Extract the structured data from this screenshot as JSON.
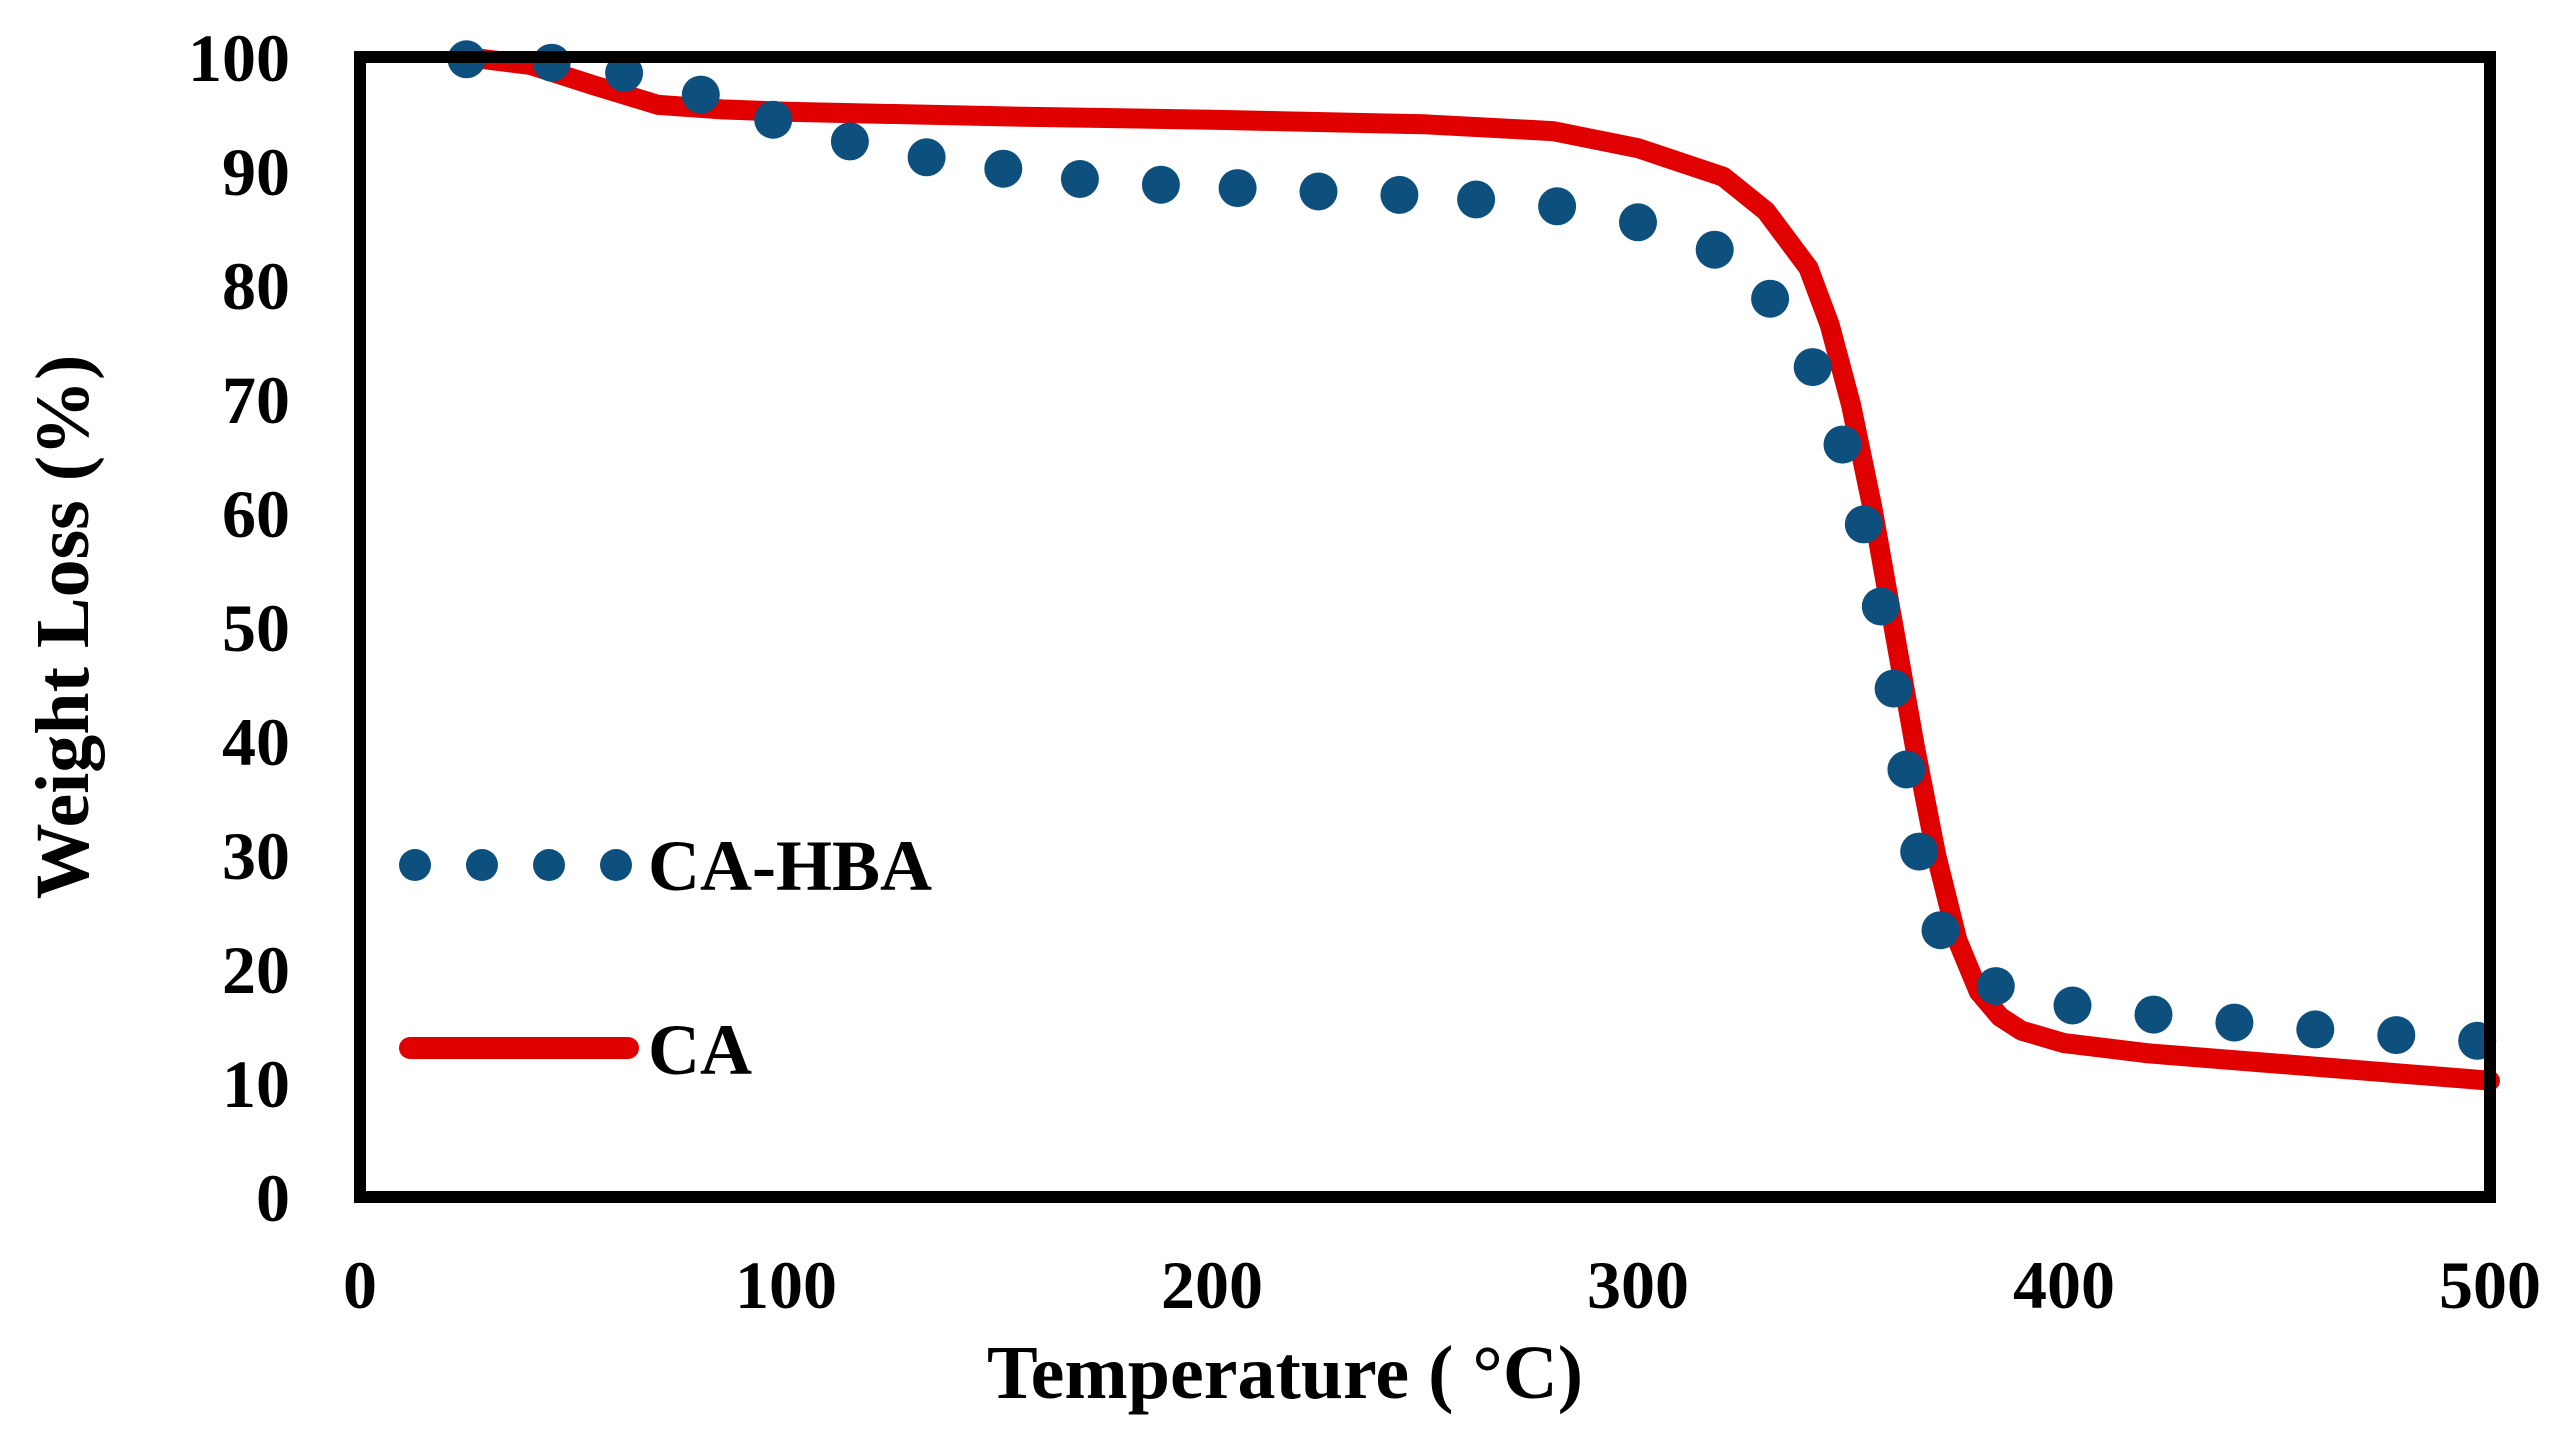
{
  "chart_data": {
    "type": "line",
    "xlabel": "Temperature ( °C)",
    "ylabel": "Weight Loss (%)",
    "xlim": [
      0,
      500
    ],
    "ylim": [
      0,
      100
    ],
    "x_ticks": [
      "0",
      "100",
      "200",
      "300",
      "400",
      "500"
    ],
    "y_ticks": [
      "0",
      "10",
      "20",
      "30",
      "40",
      "50",
      "60",
      "70",
      "80",
      "90",
      "100"
    ],
    "grid": false,
    "legend_position": "left-middle",
    "colors": {
      "ca_hba": "#0d4f7d",
      "ca": "#e00000",
      "axis": "#000000"
    },
    "series": [
      {
        "name": "CA-HBA",
        "style": "dots",
        "x": [
          25,
          45,
          62,
          80,
          97,
          115,
          133,
          151,
          169,
          188,
          206,
          225,
          244,
          262,
          281,
          300,
          318,
          331,
          341,
          348,
          353,
          357,
          360,
          363,
          366,
          371,
          384,
          402,
          421,
          440,
          459,
          478,
          497
        ],
        "y": [
          99.8,
          99.5,
          98.6,
          96.7,
          94.5,
          92.6,
          91.2,
          90.2,
          89.3,
          88.8,
          88.5,
          88.2,
          87.9,
          87.5,
          86.9,
          85.5,
          83.1,
          78.8,
          72.8,
          66.0,
          59.0,
          51.8,
          44.6,
          37.5,
          30.3,
          23.4,
          18.5,
          16.8,
          16.0,
          15.3,
          14.7,
          14.2,
          13.7
        ]
      },
      {
        "name": "CA",
        "style": "line",
        "x": [
          25,
          40,
          55,
          70,
          85,
          100,
          150,
          200,
          250,
          280,
          300,
          320,
          330,
          340,
          345,
          350,
          355,
          360,
          365,
          370,
          375,
          380,
          385,
          390,
          400,
          420,
          450,
          500
        ],
        "y": [
          100,
          99.3,
          97.5,
          95.8,
          95.4,
          95.2,
          94.8,
          94.5,
          94.1,
          93.5,
          92.0,
          89.5,
          86.5,
          81.5,
          76.5,
          69.5,
          60.5,
          50.0,
          39.5,
          30.0,
          22.5,
          18.0,
          15.8,
          14.6,
          13.5,
          12.6,
          11.7,
          10.2
        ]
      }
    ]
  }
}
